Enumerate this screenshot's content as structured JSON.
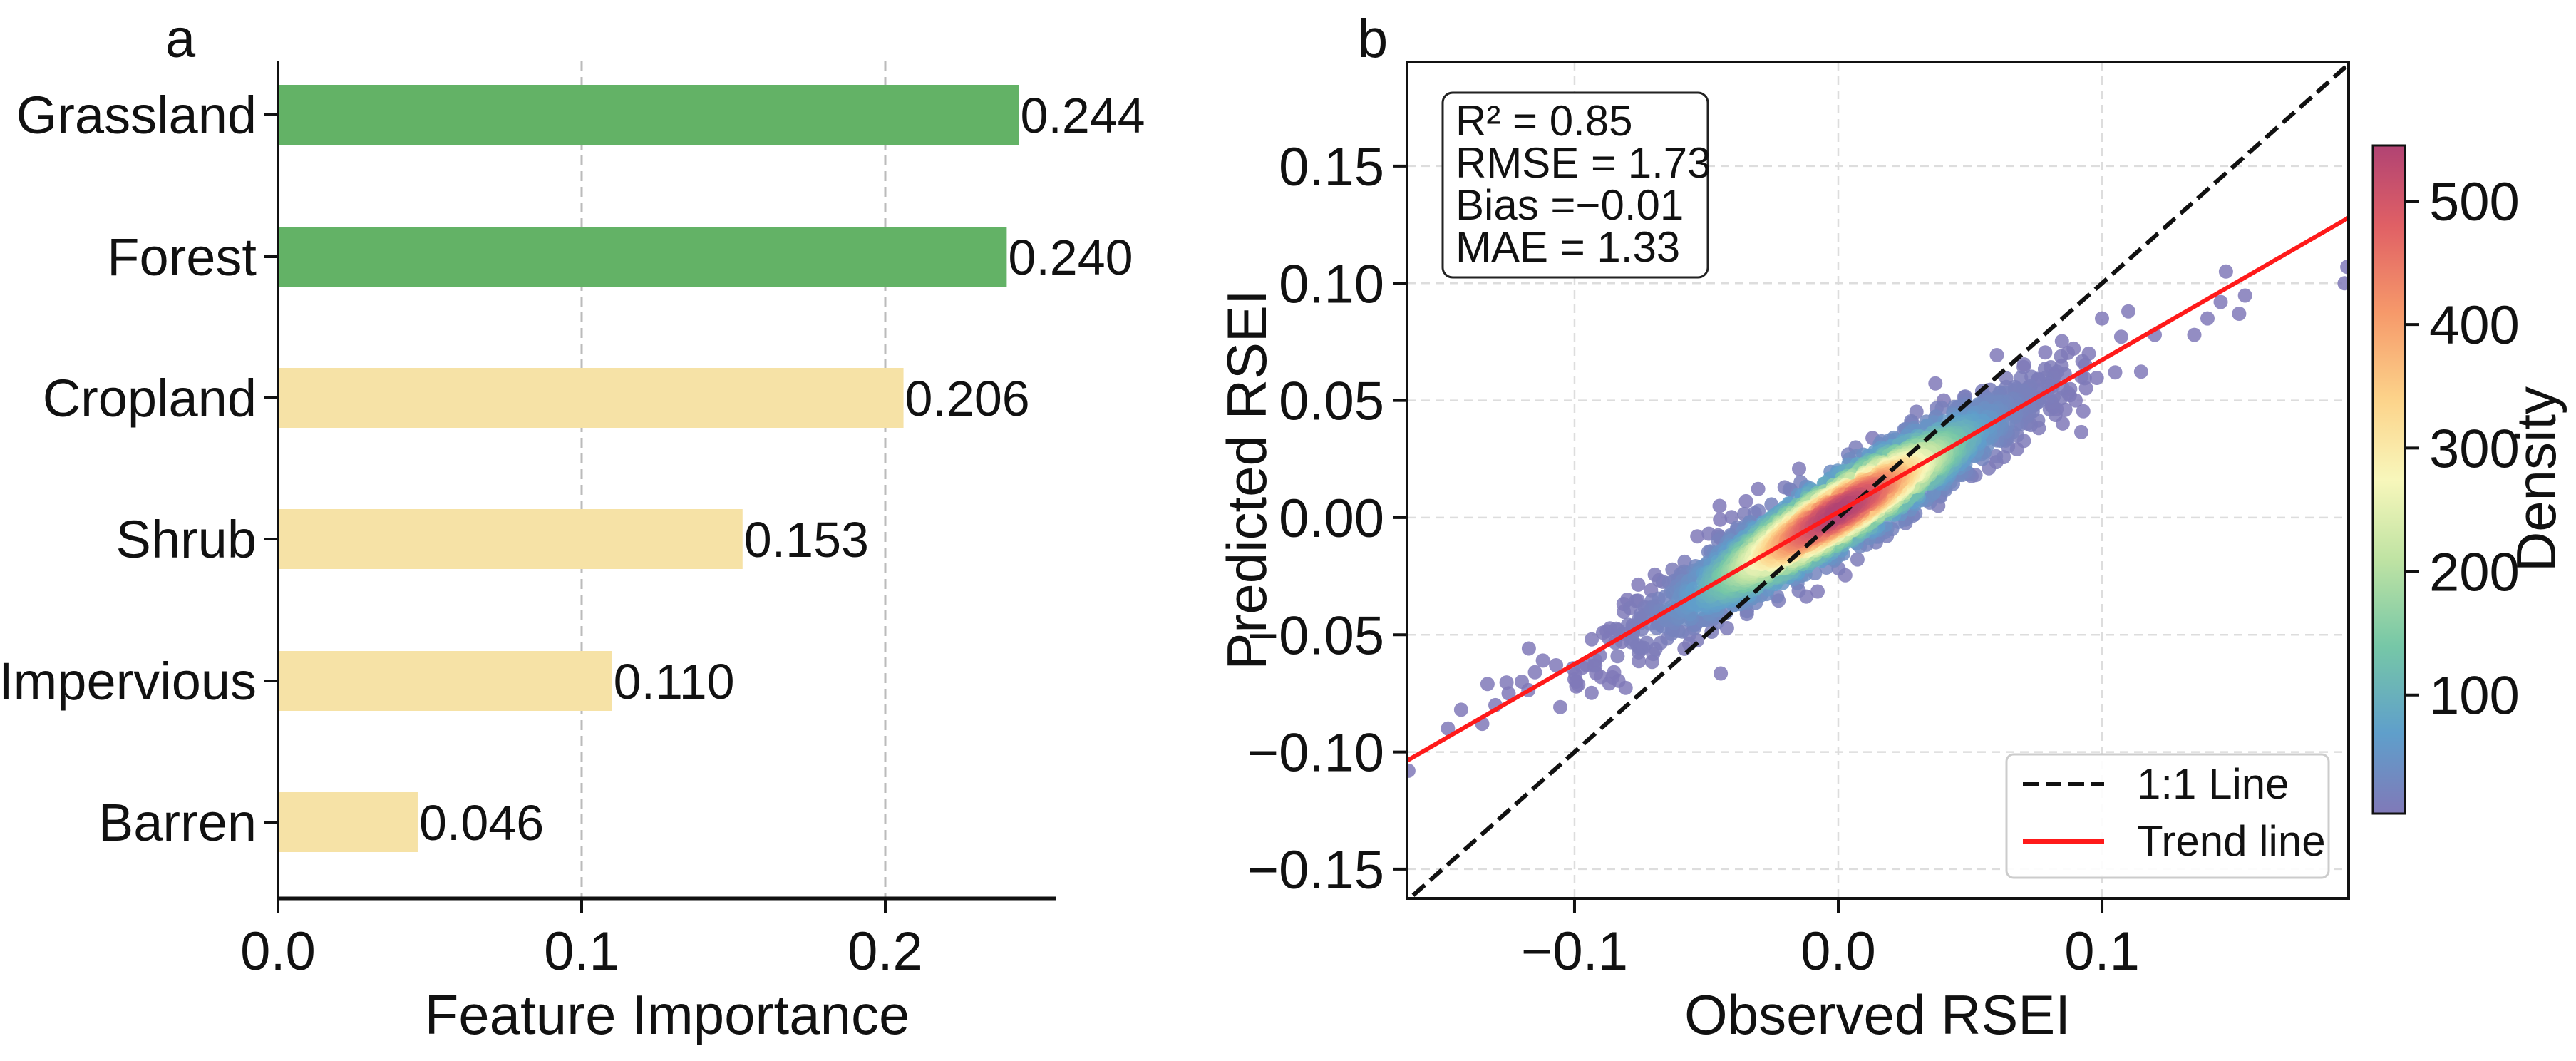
{
  "chart_data": [
    {
      "type": "bar",
      "orientation": "horizontal",
      "panel_label": "a",
      "categories": [
        "Grassland",
        "Forest",
        "Cropland",
        "Shrub",
        "Impervious",
        "Barren"
      ],
      "values": [
        0.244,
        0.24,
        0.206,
        0.153,
        0.11,
        0.046
      ],
      "value_labels": [
        "0.244",
        "0.240",
        "0.206",
        "0.153",
        "0.110",
        "0.046"
      ],
      "bar_colors": [
        "#63b266",
        "#63b266",
        "#f6e2a6",
        "#f6e2a6",
        "#f6e2a6",
        "#f6e2a6"
      ],
      "xlabel": "Feature Importance",
      "ylabel": "",
      "xlim": [
        0,
        0.256
      ],
      "xticks": [
        0.0,
        0.1,
        0.2
      ],
      "xtick_labels": [
        "0.0",
        "0.1",
        "0.2"
      ],
      "grid": "x dashed at 0.1, 0.2"
    },
    {
      "type": "scatter",
      "panel_label": "b",
      "xlabel": "Observed RSEI",
      "ylabel": "Predicted RSEI",
      "xlim": [
        -0.1635,
        0.1935
      ],
      "ylim": [
        -0.1625,
        0.1944
      ],
      "xticks": [
        -0.1,
        0.0,
        0.1
      ],
      "xtick_labels": [
        "−0.1",
        "0.0",
        "0.1"
      ],
      "yticks": [
        -0.15,
        -0.1,
        -0.05,
        0.0,
        0.05,
        0.1,
        0.15
      ],
      "ytick_labels": [
        "−0.15",
        "−0.10",
        "−0.05",
        "0.00",
        "0.05",
        "0.10",
        "0.15"
      ],
      "grid": true,
      "stats": [
        "R² = 0.85",
        "RMSE = 1.73",
        "Bias =−0.01",
        "MAE = 1.33"
      ],
      "trend_line": {
        "slope": 0.649,
        "intercept": 0.0024,
        "color": "#ff1a1a"
      },
      "one_to_one_line": {
        "color": "#111111"
      },
      "legend": {
        "placement": "lower-right",
        "entries": [
          "1:1 Line",
          "Trend line"
        ]
      },
      "cloud": {
        "n": 2600,
        "x_sd": 0.036,
        "resid_sd": 0.0085,
        "seed": 7
      },
      "outliers": [
        [
          -0.163,
          -0.108
        ],
        [
          0.192,
          0.1
        ],
        [
          0.193,
          0.107
        ],
        [
          -0.148,
          -0.09
        ],
        [
          -0.143,
          -0.082
        ],
        [
          -0.135,
          -0.088
        ],
        [
          -0.133,
          -0.071
        ],
        [
          -0.13,
          -0.08
        ],
        [
          -0.125,
          -0.075
        ],
        [
          -0.12,
          -0.07
        ],
        [
          -0.115,
          -0.066
        ],
        [
          -0.112,
          -0.061
        ],
        [
          -0.107,
          -0.063
        ],
        [
          -0.1,
          -0.069
        ],
        [
          -0.097,
          -0.064
        ],
        [
          -0.09,
          -0.068
        ],
        [
          -0.085,
          -0.066
        ],
        [
          -0.082,
          -0.053
        ],
        [
          -0.08,
          -0.035
        ],
        [
          -0.075,
          -0.045
        ],
        [
          -0.071,
          -0.031
        ],
        [
          -0.045,
          0.005
        ],
        [
          -0.035,
          0.007
        ],
        [
          0.013,
          0.034
        ],
        [
          0.04,
          0.05
        ],
        [
          0.1,
          0.085
        ],
        [
          0.11,
          0.088
        ],
        [
          0.12,
          0.078
        ],
        [
          0.135,
          0.078
        ],
        [
          0.14,
          0.085
        ],
        [
          0.145,
          0.092
        ],
        [
          0.152,
          0.087
        ],
        [
          0.147,
          0.105
        ],
        [
          0.095,
          0.07
        ],
        [
          0.105,
          0.062
        ],
        [
          0.09,
          0.05
        ]
      ],
      "colorbar": {
        "label": "Density",
        "range": [
          4,
          545
        ],
        "ticks": [
          100,
          200,
          300,
          400,
          500
        ],
        "tick_labels": [
          "100",
          "200",
          "300",
          "400",
          "500"
        ],
        "colormap": "Spectral_r"
      }
    }
  ]
}
